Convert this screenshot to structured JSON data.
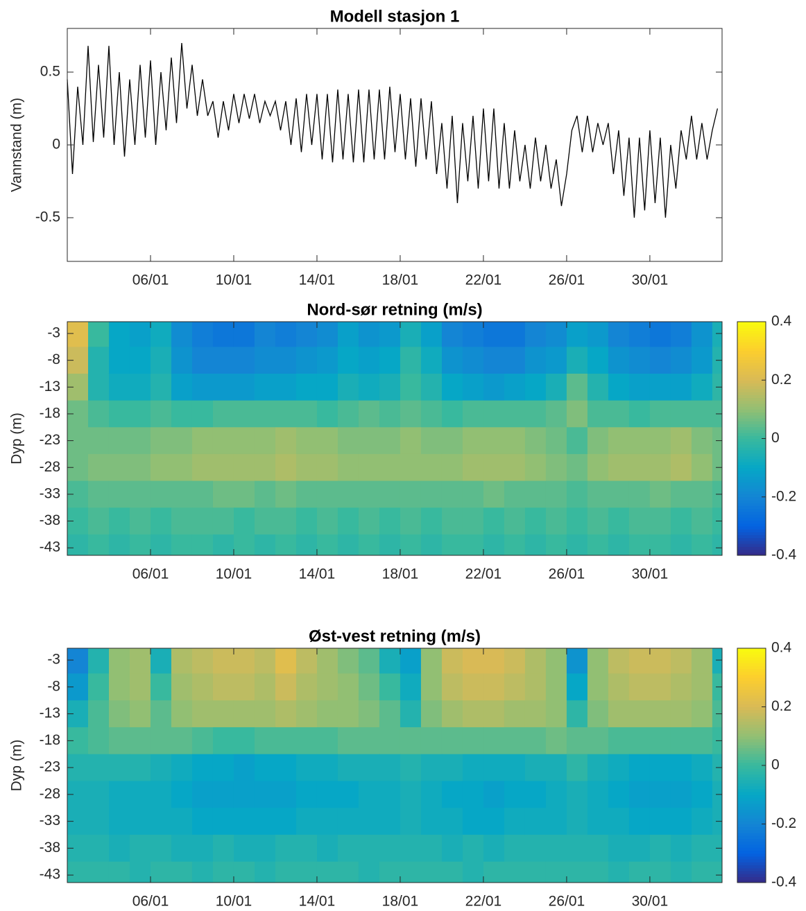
{
  "chart_data": [
    {
      "type": "line",
      "title": "Modell stasjon 1",
      "ylabel": "Vannstand (m)",
      "color": "#000000",
      "xlim": [
        2,
        33.47
      ],
      "xticks": [
        {
          "value": 6,
          "label": "06/01"
        },
        {
          "value": 10,
          "label": "10/01"
        },
        {
          "value": 14,
          "label": "14/01"
        },
        {
          "value": 18,
          "label": "18/01"
        },
        {
          "value": 22,
          "label": "22/01"
        },
        {
          "value": 26,
          "label": "26/01"
        },
        {
          "value": 30,
          "label": "30/01"
        }
      ],
      "ylim": [
        -0.8,
        0.8
      ],
      "yticks": [
        -0.5,
        0,
        0.5
      ],
      "x": [
        2,
        2.25,
        2.5,
        2.75,
        3,
        3.25,
        3.5,
        3.75,
        4,
        4.25,
        4.5,
        4.75,
        5,
        5.25,
        5.5,
        5.75,
        6,
        6.25,
        6.5,
        6.75,
        7,
        7.25,
        7.5,
        7.75,
        8,
        8.25,
        8.5,
        8.75,
        9,
        9.25,
        9.5,
        9.75,
        10,
        10.25,
        10.5,
        10.75,
        11,
        11.25,
        11.5,
        11.75,
        12,
        12.25,
        12.5,
        12.75,
        13,
        13.25,
        13.5,
        13.75,
        14,
        14.25,
        14.5,
        14.75,
        15,
        15.25,
        15.5,
        15.75,
        16,
        16.25,
        16.5,
        16.75,
        17,
        17.25,
        17.5,
        17.75,
        18,
        18.25,
        18.5,
        18.75,
        19,
        19.25,
        19.5,
        19.75,
        20,
        20.25,
        20.5,
        20.75,
        21,
        21.25,
        21.5,
        21.75,
        22,
        22.25,
        22.5,
        22.75,
        23,
        23.25,
        23.5,
        23.75,
        24,
        24.25,
        24.5,
        24.75,
        25,
        25.25,
        25.5,
        25.75,
        26,
        26.25,
        26.5,
        26.75,
        27,
        27.25,
        27.5,
        27.75,
        28,
        28.25,
        28.5,
        28.75,
        29,
        29.25,
        29.5,
        29.75,
        30,
        30.25,
        30.5,
        30.75,
        31,
        31.25,
        31.5,
        31.75,
        32,
        32.25,
        32.5,
        32.75,
        33,
        33.25
      ],
      "values": [
        0.45,
        -0.2,
        0.4,
        0.0,
        0.68,
        0.02,
        0.55,
        0.05,
        0.68,
        0.0,
        0.5,
        -0.08,
        0.45,
        0.0,
        0.55,
        0.05,
        0.58,
        0.0,
        0.5,
        0.1,
        0.6,
        0.15,
        0.7,
        0.25,
        0.55,
        0.2,
        0.45,
        0.2,
        0.3,
        0.05,
        0.3,
        0.1,
        0.35,
        0.15,
        0.35,
        0.18,
        0.35,
        0.15,
        0.3,
        0.2,
        0.3,
        0.1,
        0.3,
        0.0,
        0.32,
        -0.05,
        0.35,
        0.0,
        0.35,
        -0.1,
        0.35,
        -0.12,
        0.38,
        -0.1,
        0.35,
        -0.12,
        0.38,
        -0.12,
        0.38,
        -0.1,
        0.38,
        -0.1,
        0.4,
        -0.05,
        0.35,
        -0.1,
        0.32,
        -0.15,
        0.32,
        -0.1,
        0.3,
        -0.2,
        0.15,
        -0.3,
        0.2,
        -0.4,
        0.15,
        -0.25,
        0.2,
        -0.3,
        0.25,
        -0.25,
        0.25,
        -0.3,
        0.15,
        -0.3,
        0.1,
        -0.25,
        0.0,
        -0.3,
        0.05,
        -0.25,
        0.0,
        -0.3,
        -0.1,
        -0.42,
        -0.2,
        0.1,
        0.2,
        -0.05,
        0.2,
        -0.05,
        0.15,
        0.0,
        0.15,
        -0.2,
        0.1,
        -0.35,
        0.05,
        -0.5,
        0.05,
        -0.45,
        0.1,
        -0.4,
        0.05,
        -0.5,
        0.0,
        -0.3,
        0.1,
        -0.1,
        0.2,
        -0.1,
        0.15,
        -0.1,
        0.1,
        0.25
      ]
    },
    {
      "type": "heatmap",
      "title": "Nord-sør retning (m/s)",
      "ylabel": "Dyp (m)",
      "colormap": "parula",
      "xlim": [
        2,
        33.47
      ],
      "xticks": [
        {
          "value": 6,
          "label": "06/01"
        },
        {
          "value": 10,
          "label": "10/01"
        },
        {
          "value": 14,
          "label": "14/01"
        },
        {
          "value": 18,
          "label": "18/01"
        },
        {
          "value": 22,
          "label": "22/01"
        },
        {
          "value": 26,
          "label": "26/01"
        },
        {
          "value": 30,
          "label": "30/01"
        }
      ],
      "ylim": [
        -44.4,
        -0.8
      ],
      "yticks": [
        -3,
        -8,
        -13,
        -18,
        -23,
        -28,
        -33,
        -38,
        -43
      ],
      "clim": [
        -0.4,
        0.4
      ],
      "cticks": [
        -0.4,
        -0.2,
        0,
        0.2,
        0.4
      ],
      "xbins": [
        2,
        3,
        4,
        5,
        6,
        7,
        8,
        9,
        10,
        11,
        12,
        13,
        14,
        15,
        16,
        17,
        18,
        19,
        20,
        21,
        22,
        23,
        24,
        25,
        26,
        27,
        28,
        29,
        30,
        31,
        32,
        33,
        33.47
      ],
      "ybins": [
        -0.8,
        -5.5,
        -10.5,
        -15.5,
        -20.5,
        -25.5,
        -30.5,
        -35.5,
        -40.5,
        -44.4
      ],
      "z": [
        [
          0.22,
          0.0,
          -0.1,
          -0.12,
          -0.08,
          -0.18,
          -0.22,
          -0.24,
          -0.24,
          -0.2,
          -0.22,
          -0.2,
          -0.18,
          -0.12,
          -0.16,
          -0.14,
          -0.06,
          -0.12,
          -0.2,
          -0.22,
          -0.24,
          -0.24,
          -0.2,
          -0.18,
          -0.12,
          -0.14,
          -0.2,
          -0.22,
          -0.24,
          -0.22,
          -0.16,
          -0.06
        ],
        [
          0.18,
          -0.04,
          -0.1,
          -0.1,
          -0.06,
          -0.16,
          -0.2,
          -0.2,
          -0.2,
          -0.18,
          -0.18,
          -0.16,
          -0.14,
          -0.1,
          -0.12,
          -0.1,
          -0.02,
          -0.08,
          -0.16,
          -0.18,
          -0.2,
          -0.2,
          -0.16,
          -0.14,
          -0.06,
          -0.1,
          -0.16,
          -0.18,
          -0.2,
          -0.18,
          -0.14,
          -0.04
        ],
        [
          0.12,
          -0.04,
          -0.08,
          -0.08,
          -0.04,
          -0.12,
          -0.14,
          -0.14,
          -0.14,
          -0.12,
          -0.12,
          -0.1,
          -0.1,
          -0.06,
          -0.08,
          -0.06,
          0.0,
          -0.04,
          -0.1,
          -0.12,
          -0.14,
          -0.12,
          -0.1,
          -0.06,
          0.04,
          -0.04,
          -0.1,
          -0.12,
          -0.12,
          -0.12,
          -0.08,
          -0.02
        ],
        [
          0.06,
          0.02,
          0.0,
          0.0,
          0.02,
          0.0,
          0.0,
          0.02,
          0.02,
          0.02,
          0.02,
          0.02,
          0.0,
          0.02,
          0.04,
          0.02,
          0.04,
          0.02,
          0.0,
          0.02,
          0.02,
          0.02,
          0.02,
          0.04,
          0.08,
          0.02,
          0.02,
          0.0,
          0.02,
          0.02,
          0.02,
          0.02
        ],
        [
          0.06,
          0.06,
          0.06,
          0.06,
          0.08,
          0.08,
          0.1,
          0.1,
          0.1,
          0.1,
          0.12,
          0.1,
          0.1,
          0.08,
          0.08,
          0.08,
          0.1,
          0.08,
          0.08,
          0.1,
          0.1,
          0.1,
          0.08,
          0.06,
          0.02,
          0.08,
          0.1,
          0.1,
          0.1,
          0.12,
          0.08,
          0.06
        ],
        [
          0.06,
          0.08,
          0.08,
          0.08,
          0.1,
          0.1,
          0.12,
          0.12,
          0.12,
          0.12,
          0.14,
          0.12,
          0.12,
          0.1,
          0.1,
          0.1,
          0.1,
          0.1,
          0.1,
          0.12,
          0.12,
          0.12,
          0.1,
          0.08,
          0.06,
          0.1,
          0.12,
          0.12,
          0.12,
          0.14,
          0.1,
          0.06
        ],
        [
          0.02,
          0.04,
          0.04,
          0.04,
          0.04,
          0.04,
          0.04,
          0.06,
          0.06,
          0.04,
          0.06,
          0.04,
          0.04,
          0.04,
          0.04,
          0.04,
          0.04,
          0.04,
          0.04,
          0.04,
          0.06,
          0.04,
          0.04,
          0.04,
          0.02,
          0.04,
          0.04,
          0.04,
          0.06,
          0.04,
          0.04,
          0.02
        ],
        [
          0.0,
          0.02,
          0.0,
          0.02,
          0.0,
          0.02,
          0.02,
          0.02,
          0.0,
          0.02,
          0.02,
          0.0,
          0.02,
          0.0,
          0.02,
          0.0,
          0.02,
          0.0,
          0.02,
          0.02,
          0.0,
          0.02,
          0.0,
          0.02,
          0.0,
          0.02,
          0.0,
          0.02,
          0.02,
          0.0,
          0.02,
          0.0
        ],
        [
          -0.02,
          0.0,
          -0.02,
          0.0,
          -0.02,
          0.0,
          0.0,
          -0.02,
          0.0,
          -0.02,
          0.0,
          -0.02,
          0.0,
          -0.02,
          0.0,
          -0.02,
          0.0,
          -0.02,
          0.0,
          0.0,
          -0.02,
          0.0,
          -0.02,
          0.0,
          -0.02,
          0.0,
          -0.02,
          0.0,
          0.0,
          -0.02,
          0.0,
          -0.02
        ]
      ]
    },
    {
      "type": "heatmap",
      "title": "Øst-vest retning (m/s)",
      "ylabel": "Dyp (m)",
      "colormap": "parula",
      "xlim": [
        2,
        33.47
      ],
      "xticks": [
        {
          "value": 6,
          "label": "06/01"
        },
        {
          "value": 10,
          "label": "10/01"
        },
        {
          "value": 14,
          "label": "14/01"
        },
        {
          "value": 18,
          "label": "18/01"
        },
        {
          "value": 22,
          "label": "22/01"
        },
        {
          "value": 26,
          "label": "26/01"
        },
        {
          "value": 30,
          "label": "30/01"
        }
      ],
      "ylim": [
        -44.4,
        -0.8
      ],
      "yticks": [
        -3,
        -8,
        -13,
        -18,
        -23,
        -28,
        -33,
        -38,
        -43
      ],
      "clim": [
        -0.4,
        0.4
      ],
      "cticks": [
        -0.4,
        -0.2,
        0,
        0.2,
        0.4
      ],
      "xbins": [
        2,
        3,
        4,
        5,
        6,
        7,
        8,
        9,
        10,
        11,
        12,
        13,
        14,
        15,
        16,
        17,
        18,
        19,
        20,
        21,
        22,
        23,
        24,
        25,
        26,
        27,
        28,
        29,
        30,
        31,
        32,
        33,
        33.47
      ],
      "ybins": [
        -0.8,
        -5.5,
        -10.5,
        -15.5,
        -20.5,
        -25.5,
        -30.5,
        -35.5,
        -40.5,
        -44.4
      ],
      "z": [
        [
          -0.2,
          -0.04,
          0.1,
          0.12,
          -0.06,
          0.14,
          0.16,
          0.18,
          0.18,
          0.16,
          0.22,
          0.16,
          0.12,
          0.08,
          0.04,
          -0.06,
          -0.12,
          0.1,
          0.18,
          0.2,
          0.2,
          0.18,
          0.14,
          0.1,
          -0.16,
          0.1,
          0.16,
          0.18,
          0.18,
          0.16,
          0.12,
          -0.06
        ],
        [
          -0.14,
          0.0,
          0.1,
          0.12,
          0.0,
          0.12,
          0.14,
          0.16,
          0.16,
          0.14,
          0.18,
          0.14,
          0.12,
          0.1,
          0.06,
          0.0,
          -0.08,
          0.1,
          0.16,
          0.18,
          0.18,
          0.16,
          0.14,
          0.1,
          -0.1,
          0.1,
          0.14,
          0.16,
          0.16,
          0.14,
          0.12,
          0.0
        ],
        [
          -0.06,
          0.02,
          0.08,
          0.1,
          0.04,
          0.1,
          0.12,
          0.12,
          0.12,
          0.12,
          0.14,
          0.12,
          0.1,
          0.1,
          0.08,
          0.04,
          -0.04,
          0.08,
          0.12,
          0.14,
          0.14,
          0.12,
          0.12,
          0.1,
          -0.02,
          0.08,
          0.12,
          0.12,
          0.12,
          0.12,
          0.1,
          0.02
        ],
        [
          0.0,
          0.02,
          0.04,
          0.04,
          0.04,
          0.04,
          0.02,
          0.0,
          0.0,
          0.02,
          0.02,
          0.02,
          0.02,
          0.04,
          0.04,
          0.04,
          0.04,
          0.04,
          0.04,
          0.04,
          0.04,
          0.04,
          0.04,
          0.06,
          0.04,
          0.04,
          0.02,
          0.02,
          0.02,
          0.02,
          0.02,
          0.0
        ],
        [
          -0.04,
          -0.04,
          -0.04,
          -0.04,
          -0.06,
          -0.08,
          -0.1,
          -0.1,
          -0.12,
          -0.1,
          -0.1,
          -0.08,
          -0.08,
          -0.06,
          -0.06,
          -0.06,
          -0.04,
          -0.06,
          -0.06,
          -0.08,
          -0.08,
          -0.08,
          -0.06,
          -0.06,
          -0.02,
          -0.06,
          -0.08,
          -0.1,
          -0.1,
          -0.1,
          -0.08,
          -0.04
        ],
        [
          -0.06,
          -0.06,
          -0.08,
          -0.08,
          -0.08,
          -0.1,
          -0.12,
          -0.12,
          -0.12,
          -0.12,
          -0.12,
          -0.1,
          -0.1,
          -0.1,
          -0.08,
          -0.08,
          -0.06,
          -0.08,
          -0.1,
          -0.1,
          -0.12,
          -0.1,
          -0.1,
          -0.08,
          -0.06,
          -0.08,
          -0.1,
          -0.12,
          -0.12,
          -0.12,
          -0.1,
          -0.06
        ],
        [
          -0.06,
          -0.06,
          -0.08,
          -0.08,
          -0.08,
          -0.08,
          -0.1,
          -0.1,
          -0.1,
          -0.1,
          -0.1,
          -0.08,
          -0.08,
          -0.08,
          -0.08,
          -0.08,
          -0.06,
          -0.08,
          -0.08,
          -0.1,
          -0.1,
          -0.08,
          -0.08,
          -0.08,
          -0.06,
          -0.08,
          -0.08,
          -0.1,
          -0.1,
          -0.1,
          -0.08,
          -0.06
        ],
        [
          -0.04,
          -0.04,
          -0.06,
          -0.04,
          -0.04,
          -0.06,
          -0.06,
          -0.04,
          -0.06,
          -0.06,
          -0.04,
          -0.04,
          -0.06,
          -0.04,
          -0.04,
          -0.04,
          -0.04,
          -0.04,
          -0.06,
          -0.04,
          -0.06,
          -0.04,
          -0.04,
          -0.04,
          -0.04,
          -0.04,
          -0.06,
          -0.06,
          -0.04,
          -0.06,
          -0.04,
          -0.04
        ],
        [
          -0.02,
          -0.02,
          -0.02,
          -0.04,
          -0.02,
          -0.02,
          -0.04,
          -0.02,
          -0.02,
          -0.04,
          -0.02,
          -0.02,
          -0.02,
          -0.02,
          -0.04,
          -0.02,
          -0.02,
          -0.02,
          -0.02,
          -0.04,
          -0.02,
          -0.02,
          -0.02,
          -0.02,
          -0.02,
          -0.02,
          -0.04,
          -0.02,
          -0.02,
          -0.04,
          -0.02,
          -0.02
        ]
      ]
    }
  ]
}
